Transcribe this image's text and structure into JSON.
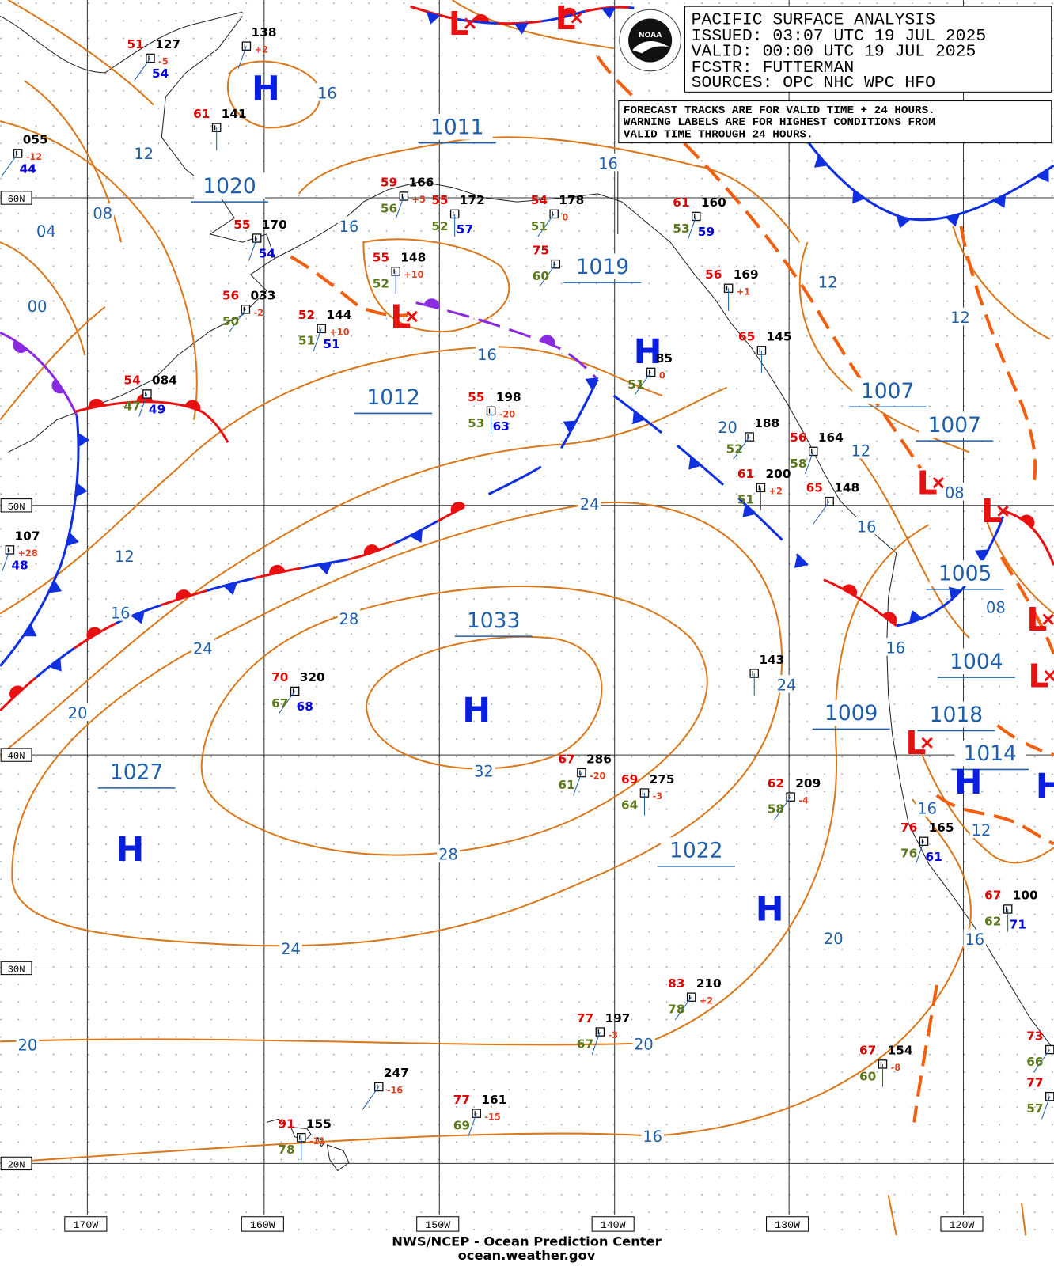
{
  "header": {
    "lines": [
      "PACIFIC SURFACE ANALYSIS",
      "ISSUED: 03:07 UTC 19 JUL 2025",
      "VALID:  00:00 UTC 19 JUL 2025",
      "FCSTR:  FUTTERMAN",
      "SOURCES: OPC NHC WPC HFO"
    ]
  },
  "logo": "NOAA",
  "note": {
    "lines": [
      "FORECAST TRACKS ARE FOR VALID TIME + 24 HOURS.",
      "WARNING LABELS ARE FOR HIGHEST CONDITIONS FROM",
      "VALID TIME THROUGH 24 HOURS."
    ]
  },
  "footer": {
    "lines": [
      "NWS/NCEP - Ocean Prediction Center",
      "ocean.weather.gov"
    ]
  },
  "lat_labels": [
    "60N",
    "50N",
    "40N",
    "30N",
    "20N"
  ],
  "lon_labels": [
    "170W",
    "160W",
    "150W",
    "140W",
    "130W",
    "120W"
  ],
  "isobar_labels": [
    "16",
    "12",
    "08",
    "04",
    "00",
    "16",
    "16",
    "16",
    "12",
    "12",
    "20",
    "12",
    "08",
    "16",
    "24",
    "12",
    "16",
    "24",
    "28",
    "08",
    "16",
    "24",
    "20",
    "32",
    "16",
    "12",
    "28",
    "24",
    "20",
    "16",
    "20",
    "20",
    "16"
  ],
  "pressure_labels": [
    "1011",
    "1020",
    "1019",
    "1012",
    "1007",
    "1007",
    "1005",
    "1033",
    "1004",
    "1009",
    "1018",
    "1014",
    "1027",
    "1022"
  ],
  "highs": [
    "H",
    "H",
    "H",
    "H",
    "H",
    "H",
    "H"
  ],
  "lows": [
    "L",
    "L",
    "L",
    "L",
    "L",
    "L",
    "L",
    "L"
  ],
  "stations": [
    {
      "pressure": "127",
      "temp": "51",
      "extra": "54",
      "tendency": "-5"
    },
    {
      "pressure": "138",
      "tendency": "+2"
    },
    {
      "pressure": "141",
      "temp": "61"
    },
    {
      "pressure": "055",
      "tendency": "-12",
      "extra": "44"
    },
    {
      "pressure": "166",
      "temp": "59",
      "dew": "56",
      "tendency": "+5"
    },
    {
      "pressure": "172",
      "temp": "55",
      "dew": "52",
      "extra": "57"
    },
    {
      "pressure": "178",
      "temp": "54",
      "dew": "51",
      "tendency": "0"
    },
    {
      "pressure": "170",
      "temp": "55",
      "extra": "54"
    },
    {
      "pressure": "148",
      "temp": "55",
      "dew": "52",
      "tendency": "+10"
    },
    {
      "temp": "75",
      "dew": "60"
    },
    {
      "pressure": "160",
      "temp": "61",
      "dew": "53",
      "extra": "59"
    },
    {
      "pressure": "169",
      "temp": "56",
      "tendency": "+1"
    },
    {
      "pressure": "033",
      "temp": "56",
      "dew": "50",
      "tendency": "-2"
    },
    {
      "pressure": "144",
      "temp": "52",
      "dew": "51",
      "extra": "51",
      "tendency": "+10"
    },
    {
      "pressure": "145",
      "temp": "65"
    },
    {
      "pressure": "85",
      "dew": "51",
      "tendency": "0"
    },
    {
      "pressure": "084",
      "temp": "54",
      "dew": "47",
      "extra": "49"
    },
    {
      "pressure": "198",
      "temp": "55",
      "dew": "53",
      "extra": "63",
      "tendency": "-20"
    },
    {
      "pressure": "188",
      "dew": "52"
    },
    {
      "pressure": "164",
      "temp": "56",
      "dew": "58"
    },
    {
      "pressure": "200",
      "temp": "61",
      "dew": "51",
      "tendency": "+2"
    },
    {
      "pressure": "148",
      "temp": "65"
    },
    {
      "pressure": "107",
      "tendency": "+28",
      "extra": "48"
    },
    {
      "pressure": "143"
    },
    {
      "pressure": "320",
      "temp": "70",
      "dew": "67",
      "extra": "68"
    },
    {
      "pressure": "286",
      "temp": "67",
      "dew": "61",
      "tendency": "-20"
    },
    {
      "pressure": "275",
      "temp": "69",
      "dew": "64",
      "tendency": "-3"
    },
    {
      "pressure": "209",
      "temp": "62",
      "dew": "58",
      "tendency": "-4"
    },
    {
      "pressure": "165",
      "temp": "76",
      "dew": "76",
      "extra": "61"
    },
    {
      "pressure": "100",
      "temp": "67",
      "dew": "62",
      "extra": "71"
    },
    {
      "pressure": "210",
      "temp": "83",
      "dew": "78",
      "tendency": "+2"
    },
    {
      "pressure": "197",
      "temp": "77",
      "dew": "67",
      "tendency": "-3"
    },
    {
      "pressure": "154",
      "temp": "67",
      "dew": "60",
      "tendency": "-8"
    },
    {
      "pressure": "247",
      "tendency": "-16"
    },
    {
      "pressure": "161",
      "temp": "77",
      "dew": "69",
      "tendency": "-15"
    },
    {
      "pressure": "155",
      "temp": "91",
      "dew": "78",
      "tendency": "-11"
    },
    {
      "temp": "73",
      "dew": "66"
    },
    {
      "temp": "77",
      "dew": "57"
    }
  ]
}
